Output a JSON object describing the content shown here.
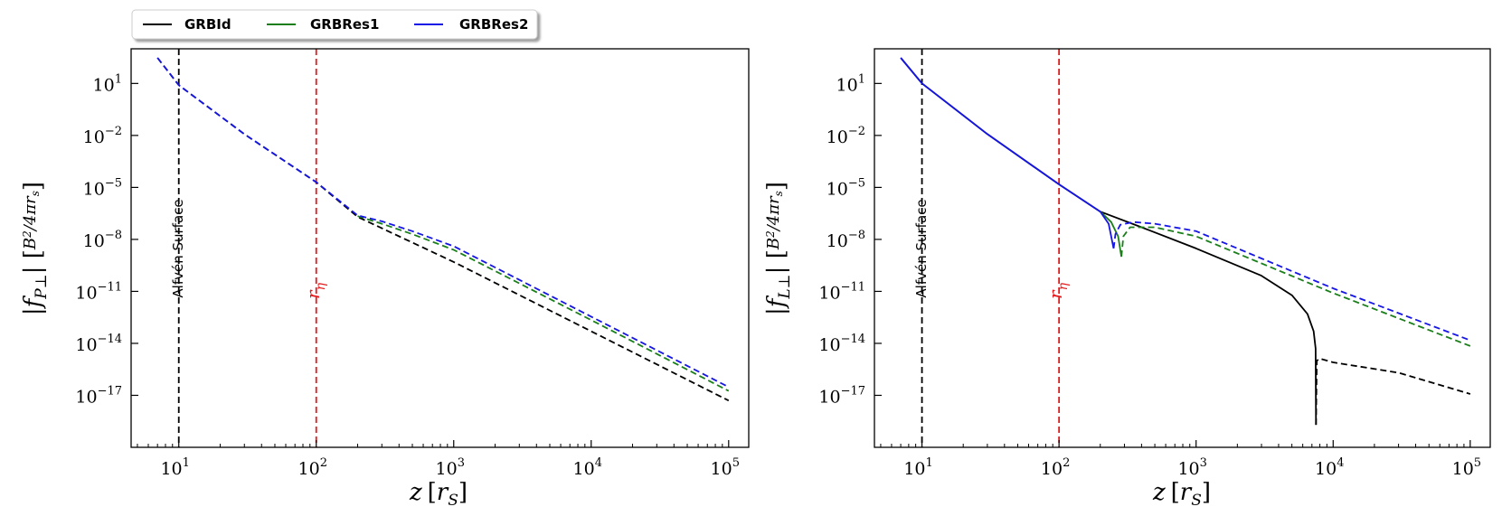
{
  "legend": {
    "items": [
      {
        "label": "GRBId",
        "color": "#000000"
      },
      {
        "label": "GRBRes1",
        "color": "#1a7f1a"
      },
      {
        "label": "GRBRes2",
        "color": "#1515e6"
      }
    ]
  },
  "chart_data": [
    {
      "type": "line",
      "xlabel": "z [r_S]",
      "ylabel": "|f_P⊥| [B_A²/4πr_s]",
      "xscale": "log",
      "yscale": "log",
      "xlim": [
        4.5,
        140000
      ],
      "ylim": [
        1e-20,
        1000.0
      ],
      "xticks": [
        {
          "value": 10,
          "base": "10",
          "exp": "1"
        },
        {
          "value": 100,
          "base": "10",
          "exp": "2"
        },
        {
          "value": 1000,
          "base": "10",
          "exp": "3"
        },
        {
          "value": 10000,
          "base": "10",
          "exp": "4"
        },
        {
          "value": 100000,
          "base": "10",
          "exp": "5"
        }
      ],
      "yticks": [
        {
          "value": 10,
          "base": "10",
          "exp": "1"
        },
        {
          "value": 0.01,
          "base": "10",
          "exp": "−2"
        },
        {
          "value": 1e-05,
          "base": "10",
          "exp": "−5"
        },
        {
          "value": 1e-08,
          "base": "10",
          "exp": "−8"
        },
        {
          "value": 1e-11,
          "base": "10",
          "exp": "−11"
        },
        {
          "value": 1e-14,
          "base": "10",
          "exp": "−14"
        },
        {
          "value": 1e-17,
          "base": "10",
          "exp": "−17"
        }
      ],
      "vlines": [
        {
          "x": 10,
          "color": "#000000",
          "label": "Alfvén Surface"
        },
        {
          "x": 100,
          "color": "#e31a1c",
          "label": "r_η"
        }
      ],
      "series": [
        {
          "name": "GRBId",
          "color": "#000000",
          "segments": [
            {
              "style": "dashed",
              "points": [
                [
                  7,
                  300
                ],
                [
                  10,
                  8
                ],
                [
                  30,
                  0.012
                ],
                [
                  100,
                  2e-05
                ],
                [
                  200,
                  2e-07
                ],
                [
                  400,
                  1.5e-08
                ],
                [
                  1000,
                  5e-10
                ],
                [
                  10000,
                  5e-14
                ],
                [
                  100000,
                  5e-18
                ]
              ]
            }
          ]
        },
        {
          "name": "GRBRes1",
          "color": "#1a7f1a",
          "segments": [
            {
              "style": "dashed",
              "points": [
                [
                  200,
                  2.2e-07
                ],
                [
                  300,
                  8e-08
                ],
                [
                  500,
                  2e-08
                ],
                [
                  1000,
                  2.5e-09
                ],
                [
                  10000,
                  2.2e-13
                ],
                [
                  100000,
                  1.8e-17
                ]
              ]
            }
          ]
        },
        {
          "name": "GRBRes2",
          "color": "#1515e6",
          "segments": [
            {
              "style": "dashed",
              "points": [
                [
                  7,
                  300
                ],
                [
                  10,
                  8
                ],
                [
                  30,
                  0.012
                ],
                [
                  100,
                  2e-05
                ],
                [
                  200,
                  2.4e-07
                ],
                [
                  300,
                  1.1e-07
                ],
                [
                  500,
                  3e-08
                ],
                [
                  1000,
                  4e-09
                ],
                [
                  10000,
                  3.5e-13
                ],
                [
                  100000,
                  3e-17
                ]
              ]
            }
          ]
        }
      ]
    },
    {
      "type": "line",
      "xlabel": "z [r_S]",
      "ylabel": "|f_L⊥| [B_A²/4πr_s]",
      "xscale": "log",
      "yscale": "log",
      "xlim": [
        4.5,
        140000
      ],
      "ylim": [
        1e-20,
        1000.0
      ],
      "xticks": [
        {
          "value": 10,
          "base": "10",
          "exp": "1"
        },
        {
          "value": 100,
          "base": "10",
          "exp": "2"
        },
        {
          "value": 1000,
          "base": "10",
          "exp": "3"
        },
        {
          "value": 10000,
          "base": "10",
          "exp": "4"
        },
        {
          "value": 100000,
          "base": "10",
          "exp": "5"
        }
      ],
      "yticks": [
        {
          "value": 10,
          "base": "10",
          "exp": "1"
        },
        {
          "value": 0.01,
          "base": "10",
          "exp": "−2"
        },
        {
          "value": 1e-05,
          "base": "10",
          "exp": "−5"
        },
        {
          "value": 1e-08,
          "base": "10",
          "exp": "−8"
        },
        {
          "value": 1e-11,
          "base": "10",
          "exp": "−11"
        },
        {
          "value": 1e-14,
          "base": "10",
          "exp": "−14"
        },
        {
          "value": 1e-17,
          "base": "10",
          "exp": "−17"
        }
      ],
      "vlines": [
        {
          "x": 10,
          "color": "#000000",
          "label": "Alfvén Surface"
        },
        {
          "x": 100,
          "color": "#e31a1c",
          "label": "r_η"
        }
      ],
      "series": [
        {
          "name": "GRBId",
          "color": "#000000",
          "segments": [
            {
              "style": "solid",
              "points": [
                [
                  7,
                  300
                ],
                [
                  10,
                  10
                ],
                [
                  30,
                  0.012
                ],
                [
                  100,
                  1.5e-05
                ],
                [
                  200,
                  4e-07
                ],
                [
                  400,
                  5e-08
                ],
                [
                  1000,
                  3e-09
                ],
                [
                  3000,
                  8e-11
                ],
                [
                  5000,
                  6e-12
                ],
                [
                  6500,
                  5e-13
                ],
                [
                  7200,
                  5e-14
                ],
                [
                  7450,
                  5e-15
                ],
                [
                  7500,
                  2e-19
                ]
              ]
            },
            {
              "style": "dashed",
              "points": [
                [
                  7500,
                  2e-19
                ],
                [
                  7600,
                  1e-15
                ],
                [
                  8000,
                  1.3e-15
                ],
                [
                  10000,
                  8e-16
                ],
                [
                  30000,
                  2e-16
                ],
                [
                  100000,
                  1.2e-17
                ]
              ]
            }
          ]
        },
        {
          "name": "GRBRes1",
          "color": "#1a7f1a",
          "segments": [
            {
              "style": "solid",
              "points": [
                [
                  200,
                  4e-07
                ],
                [
                  240,
                  1e-07
                ],
                [
                  270,
                  1.5e-08
                ],
                [
                  285,
                  1e-09
                ]
              ]
            },
            {
              "style": "dashed",
              "points": [
                [
                  285,
                  1e-09
                ],
                [
                  295,
                  1.5e-08
                ],
                [
                  330,
                  5e-08
                ],
                [
                  500,
                  5e-08
                ],
                [
                  1000,
                  1.5e-08
                ],
                [
                  10000,
                  8e-12
                ],
                [
                  100000,
                  7e-15
                ]
              ]
            }
          ]
        },
        {
          "name": "GRBRes2",
          "color": "#1515e6",
          "segments": [
            {
              "style": "solid",
              "points": [
                [
                  7,
                  300
                ],
                [
                  10,
                  10
                ],
                [
                  30,
                  0.012
                ],
                [
                  100,
                  1.5e-05
                ],
                [
                  200,
                  4e-07
                ],
                [
                  230,
                  8e-08
                ],
                [
                  250,
                  3e-09
                ]
              ]
            },
            {
              "style": "dashed",
              "points": [
                [
                  250,
                  3e-09
                ],
                [
                  258,
                  2e-08
                ],
                [
                  280,
                  7e-08
                ],
                [
                  350,
                  1e-07
                ],
                [
                  500,
                  8e-08
                ],
                [
                  1000,
                  3e-08
                ],
                [
                  10000,
                  1.5e-11
                ],
                [
                  100000,
                  1.5e-14
                ]
              ]
            }
          ]
        }
      ]
    }
  ]
}
